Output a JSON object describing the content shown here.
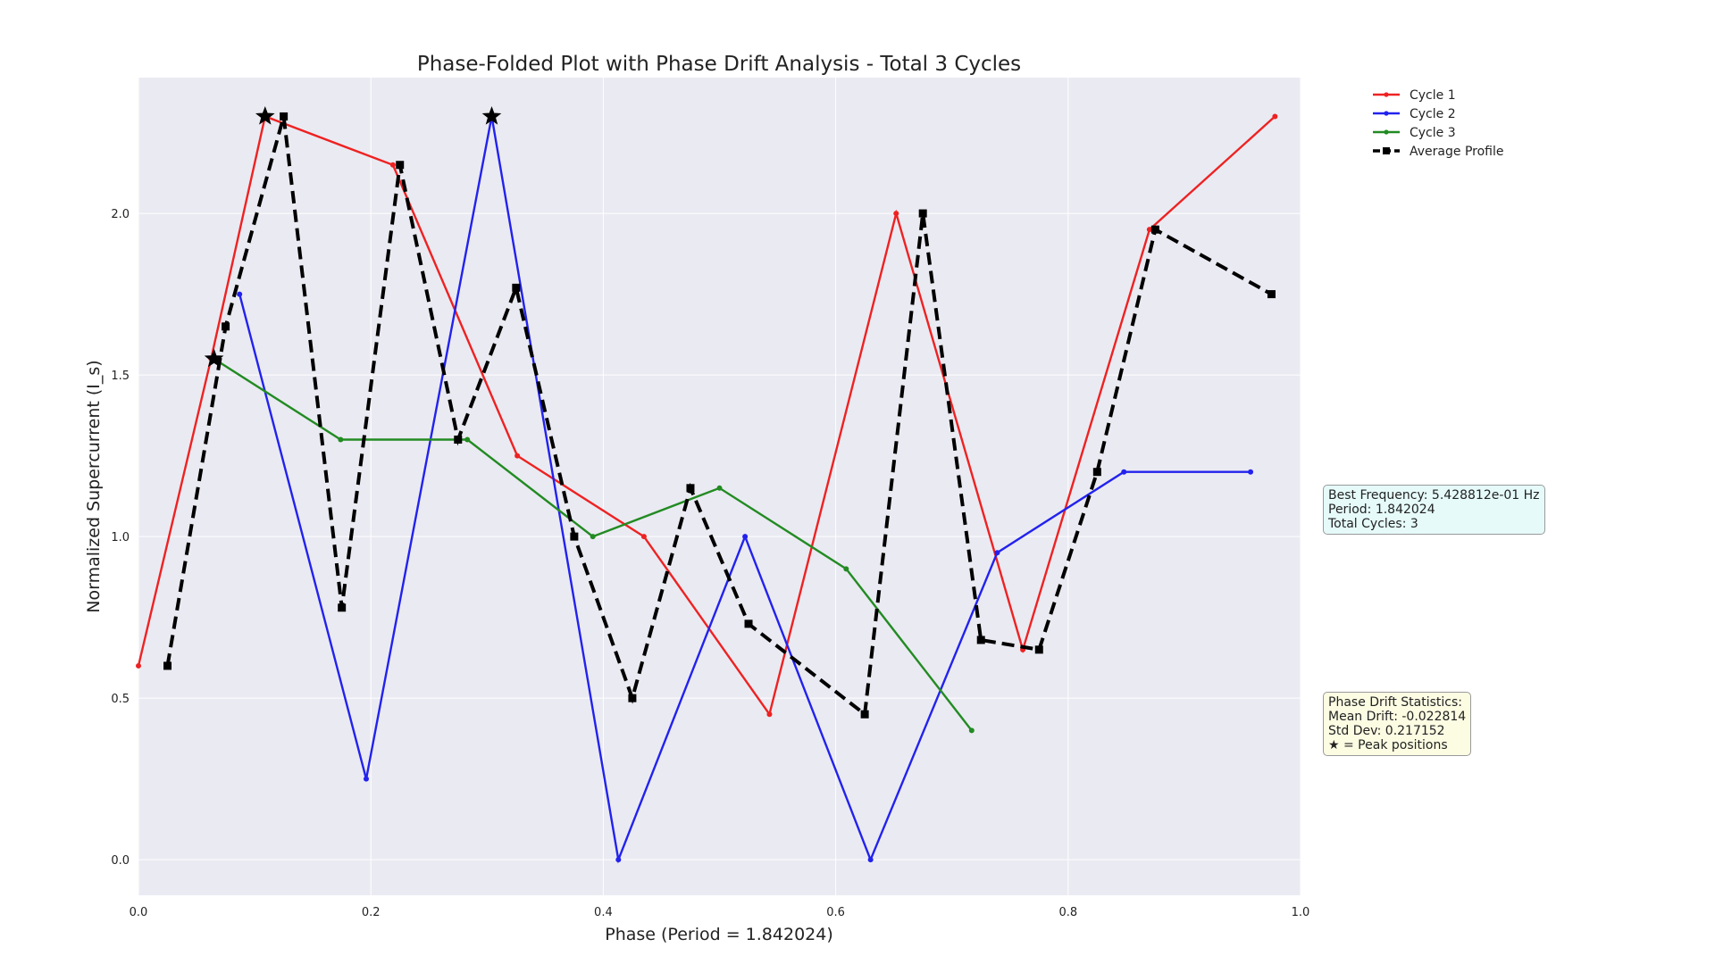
{
  "chart_data": {
    "type": "line",
    "title": "Phase-Folded Plot with Phase Drift Analysis - Total 3 Cycles",
    "xlabel": "Phase (Period = 1.842024)",
    "ylabel": "Normalized Supercurrent (I_s)",
    "xlim": [
      0.0,
      1.0
    ],
    "ylim": [
      -0.11,
      2.42
    ],
    "xticks": [
      "0.0",
      "0.2",
      "0.4",
      "0.6",
      "0.8",
      "1.0"
    ],
    "yticks": [
      "0.0",
      "0.5",
      "1.0",
      "1.5",
      "2.0"
    ],
    "grid": true,
    "legend_position": "top-right (outside plot)",
    "series": [
      {
        "name": "Cycle 1",
        "color": "#ee2222",
        "style": "solid",
        "marker": "dot",
        "x": [
          0.0,
          0.0625,
          0.109,
          0.219,
          0.326,
          0.435,
          0.543,
          0.652,
          0.761,
          0.87,
          0.978
        ],
        "y": [
          0.6,
          1.55,
          2.3,
          2.15,
          1.25,
          1.0,
          0.45,
          2.0,
          0.65,
          1.95,
          2.3
        ]
      },
      {
        "name": "Cycle 2",
        "color": "#2222ee",
        "style": "solid",
        "marker": "dot",
        "x": [
          0.087,
          0.196,
          0.304,
          0.413,
          0.522,
          0.63,
          0.739,
          0.848,
          0.957
        ],
        "y": [
          1.75,
          0.25,
          2.3,
          0.0,
          1.0,
          0.0,
          0.95,
          1.2,
          1.2
        ]
      },
      {
        "name": "Cycle 3",
        "color": "#228b22",
        "style": "solid",
        "marker": "dot",
        "x": [
          0.065,
          0.174,
          0.283,
          0.391,
          0.5,
          0.609,
          0.717
        ],
        "y": [
          1.55,
          1.3,
          1.3,
          1.0,
          1.15,
          0.9,
          0.4
        ]
      },
      {
        "name": "Average Profile",
        "color": "#000000",
        "style": "dashed",
        "marker": "square",
        "x": [
          0.025,
          0.075,
          0.125,
          0.175,
          0.225,
          0.275,
          0.325,
          0.375,
          0.425,
          0.475,
          0.525,
          0.625,
          0.675,
          0.725,
          0.775,
          0.825,
          0.875,
          0.975
        ],
        "y": [
          0.6,
          1.65,
          2.3,
          0.78,
          2.15,
          1.3,
          1.77,
          1.0,
          0.5,
          1.15,
          0.73,
          0.45,
          2.0,
          0.68,
          0.65,
          1.2,
          1.95,
          1.75
        ]
      }
    ],
    "peak_markers": {
      "symbol": "★",
      "x": [
        0.109,
        0.304,
        0.065
      ],
      "y": [
        2.3,
        2.3,
        1.55
      ]
    },
    "annotations": {
      "frequency_box": {
        "line1": "Best Frequency: 5.428812e-01 Hz",
        "line2": "Period: 1.842024",
        "line3": "Total Cycles: 3",
        "bg_color": "#e6fafa"
      },
      "drift_box": {
        "line1": "Phase Drift Statistics:",
        "line2": "Mean Drift: -0.022814",
        "line3": "Std Dev: 0.217152",
        "line4": "★ = Peak positions",
        "bg_color": "#fcfce3"
      }
    }
  }
}
